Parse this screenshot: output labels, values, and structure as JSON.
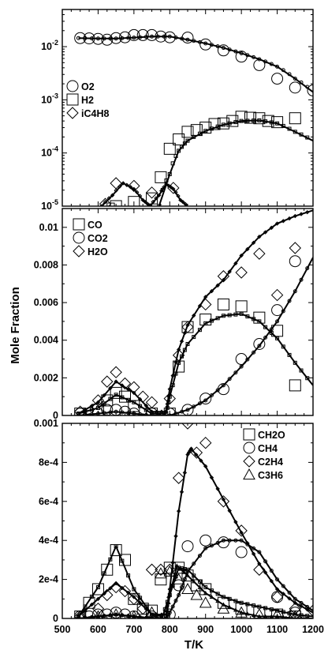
{
  "figure": {
    "ylabel": "Mole Fraction",
    "xlabel": "T/K",
    "x_ticks": [
      "500",
      "600",
      "700",
      "800",
      "900",
      "1000",
      "1100",
      "1200"
    ]
  },
  "chart_data": [
    {
      "type": "scatter",
      "panel": "top",
      "yscale": "log",
      "xlim": [
        500,
        1200
      ],
      "ylim": [
        1e-05,
        0.05
      ],
      "y_ticks": [
        "10-5",
        "10-4",
        "10-3",
        "10-2"
      ],
      "legend_position": "left",
      "series": [
        {
          "name": "O2",
          "marker": "circle",
          "exp": {
            "x": [
              550,
              575,
              600,
              625,
              650,
              675,
              700,
              725,
              750,
              775,
              800,
              850,
              900,
              950,
              1000,
              1050,
              1100,
              1150,
              1200
            ],
            "y": [
              0.0145,
              0.0143,
              0.014,
              0.0135,
              0.0145,
              0.015,
              0.0165,
              0.0165,
              0.0165,
              0.0155,
              0.015,
              0.0148,
              0.011,
              0.0085,
              0.0065,
              0.0045,
              0.0025,
              0.0017,
              0.0015
            ]
          },
          "model": {
            "x": [
              545,
              600,
              650,
              700,
              750,
              800,
              850,
              900,
              950,
              1000,
              1050,
              1100,
              1150,
              1200
            ],
            "y": [
              0.0145,
              0.0142,
              0.0142,
              0.0148,
              0.0155,
              0.0155,
              0.0135,
              0.0115,
              0.0095,
              0.0075,
              0.0058,
              0.0042,
              0.0025,
              0.0014
            ]
          }
        },
        {
          "name": "H2",
          "marker": "square",
          "exp": {
            "x": [
              630,
              650,
              700,
              750,
              775,
              800,
              825,
              850,
              875,
              900,
              925,
              950,
              975,
              1000,
              1025,
              1050,
              1075,
              1100,
              1150
            ],
            "y": [
              9e-06,
              1e-05,
              1.2e-05,
              1.4e-05,
              3.5e-05,
              0.00012,
              0.00018,
              0.00025,
              0.00027,
              0.0003,
              0.00035,
              0.00036,
              0.0004,
              0.00048,
              0.00046,
              0.00045,
              0.0004,
              0.00038,
              0.00045
            ]
          },
          "model": {
            "x": [
              770,
              800,
              825,
              850,
              900,
              950,
              1000,
              1050,
              1100,
              1150,
              1200
            ],
            "y": [
              1e-05,
              4e-05,
              0.00011,
              0.00017,
              0.00026,
              0.00034,
              0.0004,
              0.00041,
              0.00036,
              0.00025,
              0.00017
            ]
          }
        },
        {
          "name": "iC4H8",
          "marker": "diamond",
          "exp": {
            "x": [
              620,
              650,
              700,
              750,
              810
            ],
            "y": [
              1.1e-05,
              2.7e-05,
              2.4e-05,
              1.8e-05,
              2.2e-05
            ]
          },
          "model": {
            "x": [
              610,
              640,
              670,
              700,
              725,
              745,
              770,
              790,
              810,
              830,
              850
            ],
            "y": [
              1e-05,
              1.6e-05,
              2.7e-05,
              2.1e-05,
              1.3e-05,
              1e-05,
              1.6e-05,
              2.6e-05,
              2.1e-05,
              1.3e-05,
              1e-05
            ]
          }
        }
      ]
    },
    {
      "type": "scatter",
      "panel": "middle",
      "xlim": [
        500,
        1200
      ],
      "ylim": [
        0,
        0.011
      ],
      "y_ticks": [
        "0",
        "0.002",
        "0.004",
        "0.006",
        "0.008",
        "0.01"
      ],
      "legend_position": "top-left",
      "series": [
        {
          "name": "CO",
          "marker": "square",
          "exp": {
            "x": [
              550,
              600,
              625,
              650,
              675,
              700,
              750,
              800,
              825,
              850,
              900,
              950,
              1000,
              1050,
              1100,
              1150
            ],
            "y": [
              0.0001,
              0.0003,
              0.0008,
              0.0012,
              0.001,
              0.0005,
              0.0001,
              0.0001,
              0.0026,
              0.0047,
              0.0051,
              0.0059,
              0.0058,
              0.0052,
              0.0045,
              0.0016
            ]
          },
          "model": {
            "x": [
              545,
              600,
              650,
              700,
              750,
              790,
              800,
              825,
              850,
              900,
              950,
              1000,
              1050,
              1100,
              1150,
              1200
            ],
            "y": [
              0.0001,
              0.0004,
              0.0011,
              0.0007,
              0.0001,
              0.0001,
              0.001,
              0.0028,
              0.0038,
              0.0049,
              0.0053,
              0.0054,
              0.005,
              0.0041,
              0.0028,
              0.0016
            ]
          }
        },
        {
          "name": "CO2",
          "marker": "circle",
          "exp": {
            "x": [
              550,
              600,
              625,
              650,
              675,
              700,
              750,
              800,
              850,
              900,
              950,
              1000,
              1050,
              1100,
              1150
            ],
            "y": [
              0.0001,
              0.0001,
              0.0003,
              0.0003,
              0.0002,
              0.0001,
              0.0001,
              0.0001,
              0.0003,
              0.0009,
              0.0014,
              0.003,
              0.0038,
              0.0056,
              0.0082
            ]
          },
          "model": {
            "x": [
              545,
              600,
              650,
              700,
              750,
              800,
              850,
              900,
              950,
              1000,
              1050,
              1100,
              1150,
              1200
            ],
            "y": [
              0.0,
              0.0001,
              0.0002,
              0.0001,
              0.0,
              0.0,
              0.0003,
              0.0008,
              0.0016,
              0.0026,
              0.0037,
              0.005,
              0.0066,
              0.0084
            ]
          }
        },
        {
          "name": "H2O",
          "marker": "diamond",
          "exp": {
            "x": [
              550,
              600,
              625,
              650,
              675,
              700,
              725,
              750,
              800,
              825,
              850,
              900,
              950,
              1000,
              1050,
              1100,
              1150
            ],
            "y": [
              0.0002,
              0.0008,
              0.0018,
              0.0023,
              0.0017,
              0.0015,
              0.001,
              0.0007,
              0.0009,
              0.0032,
              0.0047,
              0.0059,
              0.0074,
              0.0076,
              0.0086,
              0.0064,
              0.0089
            ]
          },
          "model": {
            "x": [
              545,
              600,
              650,
              700,
              750,
              790,
              800,
              825,
              850,
              900,
              950,
              1000,
              1050,
              1100,
              1150,
              1200
            ],
            "y": [
              0.0001,
              0.0007,
              0.0018,
              0.0012,
              0.0002,
              0.0002,
              0.0014,
              0.0035,
              0.0048,
              0.0063,
              0.0072,
              0.0085,
              0.0095,
              0.0102,
              0.0106,
              0.0109
            ]
          }
        }
      ]
    },
    {
      "type": "scatter",
      "panel": "bottom",
      "xlim": [
        500,
        1200
      ],
      "ylim": [
        0,
        0.001
      ],
      "y_ticks": [
        "0",
        "2e-4",
        "4e-4",
        "6e-4",
        "8e-4",
        "0.001"
      ],
      "legend_position": "top-right",
      "series": [
        {
          "name": "CH2O",
          "marker": "square",
          "exp": {
            "x": [
              550,
              575,
              600,
              625,
              650,
              675,
              700,
              725,
              750,
              775,
              800,
              825,
              850,
              875,
              900,
              950,
              1000,
              1050,
              1100,
              1150
            ],
            "y": [
              1e-05,
              8e-05,
              0.00015,
              0.00025,
              0.00035,
              0.0003,
              0.0001,
              5e-05,
              4e-05,
              0.0002,
              0.00026,
              0.00026,
              0.00022,
              0.00017,
              0.00015,
              8e-05,
              5e-05,
              3e-05,
              2e-05,
              1e-05
            ]
          },
          "model": {
            "x": [
              545,
              600,
              650,
              700,
              750,
              780,
              800,
              825,
              850,
              900,
              950,
              1000,
              1050,
              1100,
              1150,
              1200
            ],
            "y": [
              1e-05,
              0.00016,
              0.00037,
              0.00015,
              2e-05,
              1e-05,
              0.00012,
              0.00026,
              0.00025,
              0.00016,
              0.00011,
              8e-05,
              6e-05,
              4e-05,
              2e-05,
              1e-05
            ]
          }
        },
        {
          "name": "CH4",
          "marker": "circle",
          "exp": {
            "x": [
              550,
              575,
              600,
              625,
              650,
              675,
              700,
              750,
              800,
              825,
              850,
              900,
              950,
              1000,
              1100,
              1150
            ],
            "y": [
              1e-05,
              1e-05,
              2e-05,
              2e-05,
              3e-05,
              2e-05,
              1e-05,
              1e-05,
              2e-05,
              0.00017,
              0.00037,
              0.0004,
              0.00039,
              0.00034,
              0.00011,
              3e-05
            ]
          },
          "model": {
            "x": [
              545,
              600,
              650,
              700,
              750,
              790,
              800,
              825,
              850,
              900,
              950,
              1000,
              1050,
              1100,
              1150,
              1200
            ],
            "y": [
              0.0,
              1e-05,
              2e-05,
              1e-05,
              0.0,
              0.0,
              3e-05,
              0.00012,
              0.00024,
              0.00036,
              0.0004,
              0.0004,
              0.00034,
              0.0002,
              0.0001,
              4e-05
            ]
          }
        },
        {
          "name": "C2H4",
          "marker": "diamond",
          "exp": {
            "x": [
              550,
              600,
              625,
              650,
              675,
              700,
              725,
              750,
              775,
              800,
              825,
              850,
              875,
              900,
              950,
              1000,
              1050,
              1100,
              1150,
              1200
            ],
            "y": [
              1e-05,
              5e-05,
              0.00012,
              0.00016,
              0.00014,
              0.0001,
              5e-05,
              0.00025,
              0.00025,
              0.00025,
              0.00072,
              0.001,
              0.00085,
              0.0009,
              0.0006,
              0.00045,
              0.00025,
              0.00011,
              5e-05,
              4e-05
            ]
          },
          "model": {
            "x": [
              545,
              600,
              650,
              700,
              750,
              790,
              800,
              825,
              850,
              860,
              900,
              950,
              1000,
              1050,
              1100,
              1150,
              1200
            ],
            "y": [
              1e-05,
              0.0001,
              0.00018,
              0.00011,
              2e-05,
              2e-05,
              0.00015,
              0.00055,
              0.00084,
              0.00087,
              0.00078,
              0.00061,
              0.00044,
              0.00028,
              0.00015,
              8e-05,
              3e-05
            ]
          }
        },
        {
          "name": "C3H6",
          "marker": "triangle",
          "exp": {
            "x": [
              550,
              600,
              650,
              700,
              750,
              775,
              800,
              825,
              850,
              875,
              900,
              950,
              1000,
              1050,
              1100,
              1150
            ],
            "y": [
              1e-05,
              1e-05,
              2e-05,
              1e-05,
              3e-05,
              0.00023,
              0.00024,
              0.0002,
              0.00015,
              0.00012,
              8e-05,
              5e-05,
              3e-05,
              2e-05,
              2e-05,
              1e-05
            ]
          },
          "model": {
            "x": [
              545,
              600,
              650,
              700,
              750,
              790,
              800,
              820,
              850,
              900,
              950,
              1000,
              1050,
              1100,
              1150,
              1200
            ],
            "y": [
              0.0,
              1e-05,
              2e-05,
              1e-05,
              0.0,
              0.0,
              0.00012,
              0.00027,
              0.00022,
              0.00013,
              7e-05,
              3e-05,
              1e-05,
              1e-05,
              0.0,
              0.0
            ]
          }
        }
      ]
    }
  ]
}
